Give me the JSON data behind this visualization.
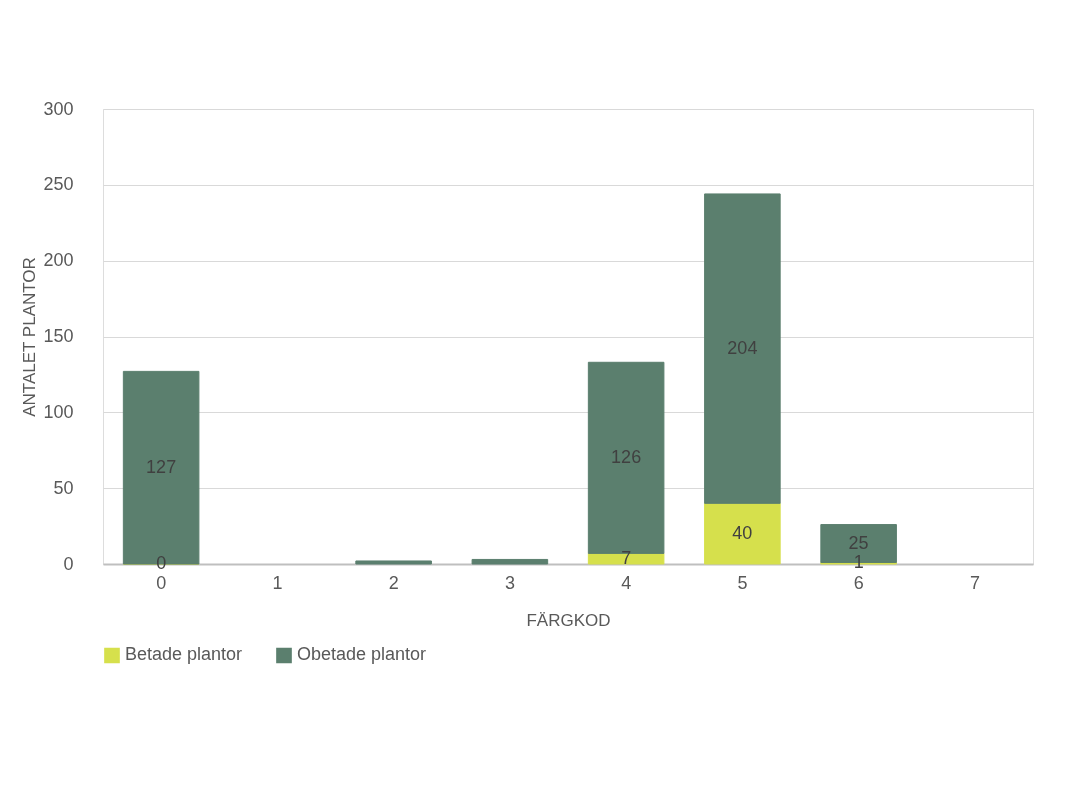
{
  "chart_data": {
    "type": "bar",
    "stacked": true,
    "xlabel": "FÄRGKOD",
    "ylabel": "ANTALET PLANTOR",
    "categories": [
      "0",
      "1",
      "2",
      "3",
      "4",
      "5",
      "6",
      "7"
    ],
    "series": [
      {
        "name": "Betade plantor",
        "color": "#d6e04c",
        "values": [
          0,
          null,
          null,
          null,
          7,
          40,
          1,
          null
        ],
        "value_labels": [
          "0",
          null,
          null,
          null,
          "7",
          "40",
          "1",
          null
        ]
      },
      {
        "name": "Obetade plantor",
        "color": "#5b7f6e",
        "values": [
          127,
          null,
          2,
          3,
          126,
          204,
          25,
          null
        ],
        "value_labels": [
          "127",
          null,
          null,
          null,
          "126",
          "204",
          "25",
          null
        ]
      }
    ],
    "ylim": [
      0,
      300
    ],
    "yticks": [
      0,
      50,
      100,
      150,
      200,
      250,
      300
    ],
    "grid": "y",
    "legend": "bottom"
  }
}
